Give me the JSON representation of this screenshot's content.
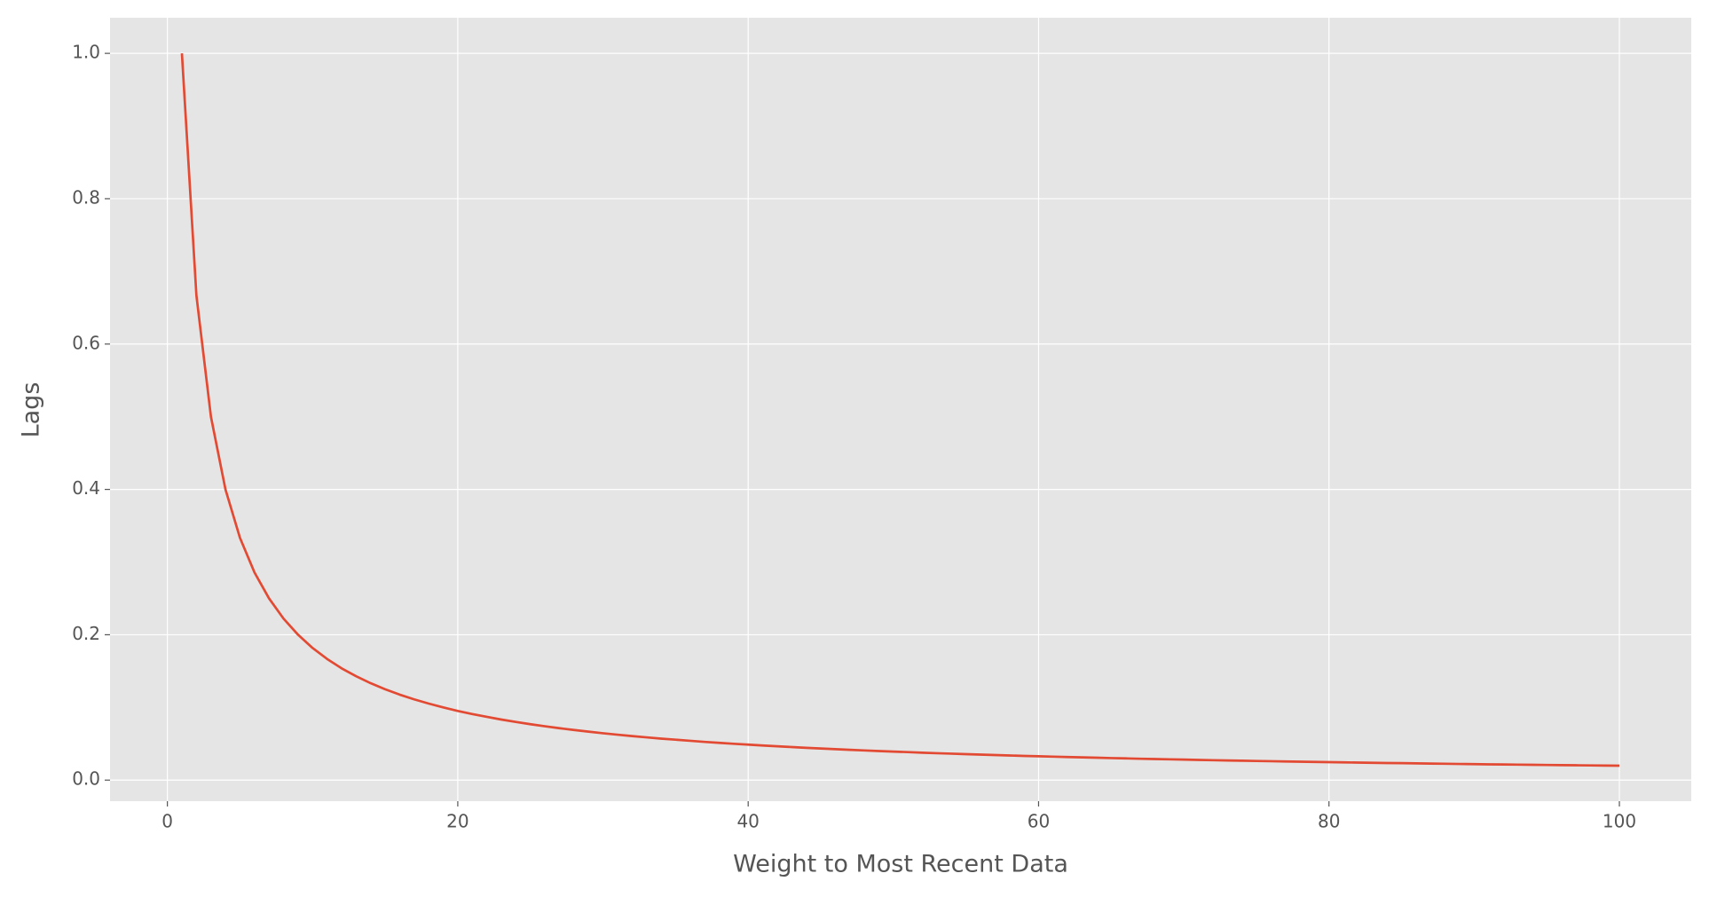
{
  "chart_data": {
    "type": "line",
    "xlabel": "Weight to Most Recent Data",
    "ylabel": "Lags",
    "x": [
      1,
      2,
      3,
      4,
      5,
      6,
      7,
      8,
      9,
      10,
      11,
      12,
      13,
      14,
      15,
      16,
      17,
      18,
      19,
      20,
      21,
      22,
      23,
      24,
      25,
      26,
      27,
      28,
      29,
      30,
      31,
      32,
      33,
      34,
      35,
      36,
      37,
      38,
      39,
      40,
      41,
      42,
      43,
      44,
      45,
      46,
      47,
      48,
      49,
      50,
      51,
      52,
      53,
      54,
      55,
      56,
      57,
      58,
      59,
      60,
      61,
      62,
      63,
      64,
      65,
      66,
      67,
      68,
      69,
      70,
      71,
      72,
      73,
      74,
      75,
      76,
      77,
      78,
      79,
      80,
      81,
      82,
      83,
      84,
      85,
      86,
      87,
      88,
      89,
      90,
      91,
      92,
      93,
      94,
      95,
      96,
      97,
      98,
      99,
      100
    ],
    "series": [
      {
        "color": "#e24a33",
        "values": [
          1,
          0.6667,
          0.5,
          0.4,
          0.3333,
          0.2857,
          0.25,
          0.2222,
          0.2,
          0.1818,
          0.1667,
          0.1538,
          0.1429,
          0.1333,
          0.125,
          0.1176,
          0.1111,
          0.1053,
          0.1,
          0.0952,
          0.0909,
          0.087,
          0.0833,
          0.08,
          0.0769,
          0.0741,
          0.0714,
          0.069,
          0.0667,
          0.0645,
          0.0625,
          0.0606,
          0.0588,
          0.0571,
          0.0556,
          0.0541,
          0.0526,
          0.0513,
          0.05,
          0.0488,
          0.0476,
          0.0465,
          0.0455,
          0.0444,
          0.0435,
          0.0426,
          0.0417,
          0.0408,
          0.04,
          0.0392,
          0.0385,
          0.0377,
          0.037,
          0.0364,
          0.0357,
          0.0351,
          0.0345,
          0.0339,
          0.0333,
          0.0328,
          0.0323,
          0.0317,
          0.0313,
          0.0308,
          0.0303,
          0.0299,
          0.0294,
          0.029,
          0.0286,
          0.0282,
          0.0278,
          0.0274,
          0.027,
          0.0267,
          0.0263,
          0.026,
          0.0256,
          0.0253,
          0.025,
          0.0247,
          0.0244,
          0.0241,
          0.0238,
          0.0235,
          0.0233,
          0.023,
          0.0227,
          0.0225,
          0.0222,
          0.022,
          0.0217,
          0.0215,
          0.0213,
          0.0211,
          0.0208,
          0.0206,
          0.0204,
          0.0202,
          0.02,
          0.0198
        ]
      }
    ],
    "xlim": [
      -3.95,
      104.95
    ],
    "xticks": [
      0,
      20,
      40,
      60,
      80,
      100
    ],
    "ylim": [
      -0.029,
      1.049
    ],
    "yticks": [
      {
        "value": 0,
        "label": "0.0"
      },
      0.2,
      0.4,
      0.6,
      0.8,
      {
        "value": 1,
        "label": "1.0"
      }
    ],
    "grid": true
  }
}
